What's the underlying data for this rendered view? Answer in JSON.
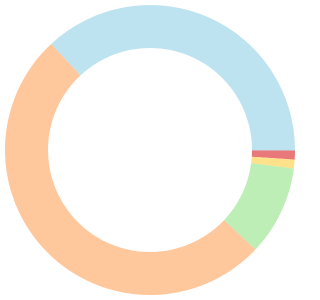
{
  "chart_data": {
    "type": "donut",
    "values": [
      37,
      1,
      1,
      10,
      51
    ],
    "colors": [
      "#bee3f0",
      "#e8787a",
      "#fde28a",
      "#bdeeb6",
      "#ffc79c"
    ]
  }
}
